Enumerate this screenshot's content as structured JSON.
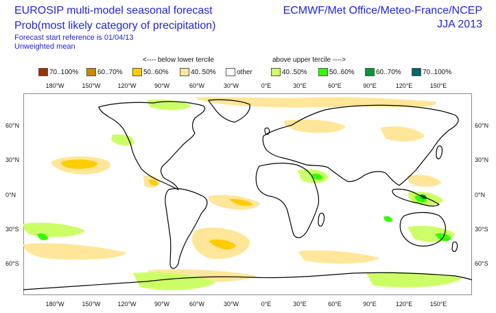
{
  "header": {
    "title_line1": "EUROSIP multi-model seasonal forecast",
    "title_line2": "Prob(most likely category of precipitation)",
    "title_line3": "Forecast start reference is 01/04/13",
    "title_line4": "Unweighted mean",
    "centres": "ECMWF/Met Office/Meteo-France/NCEP",
    "season": "JJA 2013"
  },
  "legend": {
    "below_title": "<---- below lower tercile",
    "above_title": "above upper tercile ---->",
    "items": [
      {
        "label": "70..100%",
        "color": "#993300"
      },
      {
        "label": "60..70%",
        "color": "#cc8800"
      },
      {
        "label": "50..60%",
        "color": "#ffcc00"
      },
      {
        "label": "40..50%",
        "color": "#ffe699"
      },
      {
        "label": "other",
        "color": "#ffffff"
      },
      {
        "label": "40..50%",
        "color": "#ccff66"
      },
      {
        "label": "50..60%",
        "color": "#33ff00"
      },
      {
        "label": "60..70%",
        "color": "#009933"
      },
      {
        "label": "70..100%",
        "color": "#006666"
      }
    ]
  },
  "axes": {
    "lon_labels": [
      "180°W",
      "150°W",
      "120°W",
      "90°W",
      "60°W",
      "30°W",
      "0°E",
      "30°E",
      "60°E",
      "90°E",
      "120°E",
      "150°E"
    ],
    "lat_labels": [
      "60°N",
      "30°N",
      "0°N",
      "30°S",
      "60°S"
    ]
  },
  "map": {
    "land_outline_color": "#000000",
    "border_color": "#888888"
  }
}
